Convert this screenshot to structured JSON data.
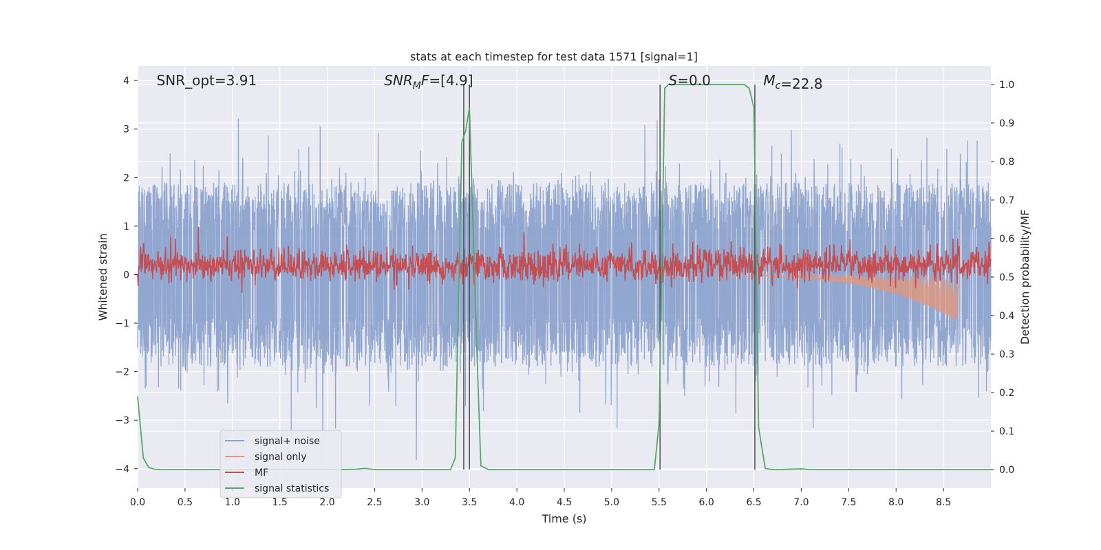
{
  "chart_data": {
    "type": "line",
    "title": "stats at each timestep for test data 1571 [signal=1]",
    "xlabel": "Time (s)",
    "ylabel_left": "Whitened strain",
    "ylabel_right": "Detection probability/MF",
    "xlim": [
      0.0,
      9.0
    ],
    "ylim_left": [
      -4.4,
      4.3
    ],
    "ylim_right": [
      -0.048,
      1.048
    ],
    "x_ticks": [
      0.0,
      0.5,
      1.0,
      1.5,
      2.0,
      2.5,
      3.0,
      3.5,
      4.0,
      4.5,
      5.0,
      5.5,
      6.0,
      6.5,
      7.0,
      7.5,
      8.0,
      8.5
    ],
    "x_tick_labels": [
      "0.0",
      "0.5",
      "1.0",
      "1.5",
      "2.0",
      "2.5",
      "3.0",
      "3.5",
      "4.0",
      "4.5",
      "5.0",
      "5.5",
      "6.0",
      "6.5",
      "7.0",
      "7.5",
      "8.0",
      "8.5"
    ],
    "y_left_ticks": [
      -4,
      -3,
      -2,
      -1,
      0,
      1,
      2,
      3,
      4
    ],
    "y_left_tick_labels": [
      "−4",
      "−3",
      "−2",
      "−1",
      "0",
      "1",
      "2",
      "3",
      "4"
    ],
    "y_right_ticks": [
      0.0,
      0.1,
      0.2,
      0.3,
      0.4,
      0.5,
      0.6,
      0.7,
      0.8,
      0.9,
      1.0
    ],
    "y_right_tick_labels": [
      "0.0",
      "0.1",
      "0.2",
      "0.3",
      "0.4",
      "0.5",
      "0.6",
      "0.7",
      "0.8",
      "0.9",
      "1.0"
    ],
    "annotations": [
      {
        "text": "SNR_opt=3.91",
        "x": 0.2,
        "y": 4.0
      },
      {
        "text": "SNR_MF=[4.9]",
        "x": 2.6,
        "y": 4.0
      },
      {
        "text": "S=0.0",
        "x": 5.6,
        "y": 4.0
      },
      {
        "text": "M_c=22.8",
        "x": 6.6,
        "y": 4.0
      }
    ],
    "vertical_lines": [
      3.44,
      3.5,
      5.51,
      6.51
    ],
    "series": [
      {
        "name": "signal+ noise",
        "color": "#8da3cd",
        "axis": "left",
        "style": "noise",
        "amplitude": 1.6,
        "peak_max": 3.5
      },
      {
        "name": "signal only",
        "color": "#e0977e",
        "axis": "left",
        "style": "chirp",
        "x_start": 5.5,
        "x_end": 8.65,
        "amplitude_end": 0.95
      },
      {
        "name": "MF",
        "color": "#c44e52",
        "axis": "right",
        "style": "noisy-level",
        "baseline": 0.53,
        "spread": 0.035,
        "spikes": [
          {
            "x": 0.64,
            "y": 0.63
          },
          {
            "x": 8.6,
            "y": 0.6
          },
          {
            "x": 8.65,
            "y": 0.6
          }
        ]
      },
      {
        "name": "signal statistics",
        "color": "#55a868",
        "axis": "right",
        "style": "line",
        "x": [
          0.0,
          0.06,
          0.12,
          0.18,
          0.3,
          2.0,
          2.3,
          2.4,
          2.5,
          3.3,
          3.35,
          3.42,
          3.46,
          3.5,
          3.58,
          3.62,
          3.7,
          5.45,
          5.5,
          5.56,
          5.6,
          6.4,
          6.45,
          6.5,
          6.55,
          6.62,
          6.7,
          7.0,
          7.1,
          9.0
        ],
        "y": [
          0.19,
          0.03,
          0.005,
          0.001,
          0.0,
          0.0,
          0.001,
          0.003,
          0.0,
          0.0,
          0.03,
          0.85,
          0.88,
          0.94,
          0.3,
          0.01,
          0.0,
          0.0,
          0.12,
          0.99,
          1.0,
          1.0,
          0.99,
          0.94,
          0.11,
          0.003,
          0.0,
          0.002,
          0.0,
          0.0
        ]
      }
    ]
  }
}
